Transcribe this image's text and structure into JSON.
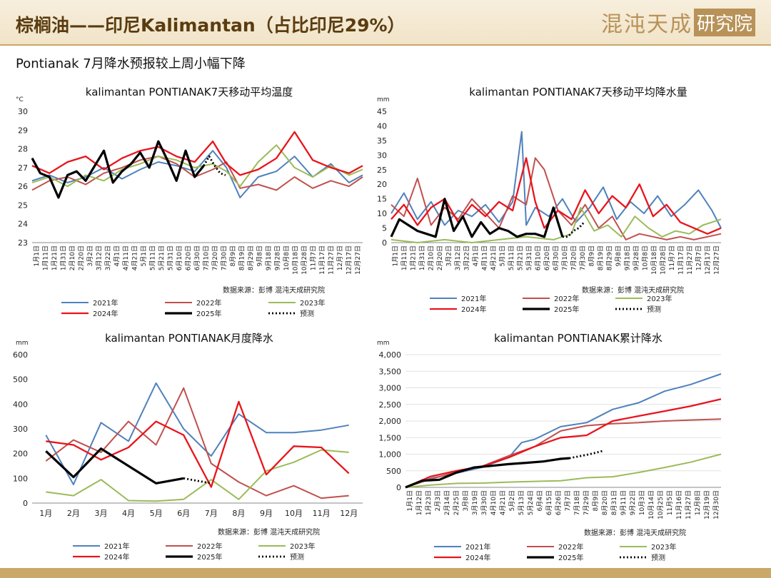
{
  "header": {
    "title": "棕榈油——印尼Kalimantan（占比印尼29%）",
    "logo_text": "混沌天成",
    "logo_box": "研究院"
  },
  "subtitle": "Pontianak 7月降水预报较上周小幅下降",
  "series_colors": {
    "2021年": "#4f81bd",
    "2022年": "#c0504d",
    "2023年": "#9bbb59",
    "2024年": "#e8141c",
    "2025年": "#000000",
    "预测": "#000000"
  },
  "chart_data": [
    {
      "id": "temp",
      "type": "line",
      "title": "kalimantan PONTIANAK7天移动平均温度",
      "unit": "°C",
      "ylim": [
        23,
        30
      ],
      "yticks": [
        23,
        24,
        25,
        26,
        27,
        28,
        29,
        30
      ],
      "ytick_labels": [
        "23",
        "24",
        "25",
        "26",
        "27",
        "28",
        "29",
        "30"
      ],
      "xticks": [
        "1月1日",
        "1月11日",
        "1月21日",
        "1月31日",
        "2月10日",
        "2月20日",
        "3月2日",
        "3月12日",
        "3月22日",
        "4月1日",
        "4月11日",
        "4月21日",
        "5月1日",
        "5月11日",
        "5月21日",
        "5月31日",
        "6月10日",
        "6月20日",
        "6月30日",
        "7月10日",
        "7月20日",
        "7月30日",
        "8月9日",
        "8月19日",
        "8月29日",
        "9月8日",
        "9月18日",
        "9月28日",
        "10月8日",
        "10月18日",
        "10月28日",
        "11月7日",
        "11月17日",
        "11月27日",
        "12月7日",
        "12月17日",
        "12月27日"
      ],
      "source": "数据来源：彭博  混沌天成研究院",
      "series": [
        {
          "name": "2021年",
          "x": [
            1,
            20,
            40,
            60,
            80,
            100,
            120,
            140,
            160,
            180,
            200,
            215,
            230,
            250,
            270,
            290,
            310,
            330,
            350,
            365
          ],
          "y": [
            26.3,
            26.6,
            26.2,
            26.5,
            27.0,
            26.4,
            26.9,
            27.3,
            27.1,
            26.8,
            27.9,
            27.0,
            25.4,
            26.5,
            26.8,
            27.6,
            26.5,
            27.2,
            26.2,
            26.6
          ]
        },
        {
          "name": "2022年",
          "x": [
            1,
            20,
            40,
            60,
            80,
            100,
            120,
            140,
            160,
            180,
            200,
            215,
            230,
            250,
            270,
            290,
            310,
            330,
            350,
            365
          ],
          "y": [
            25.8,
            26.3,
            26.5,
            26.1,
            26.7,
            27.0,
            27.4,
            27.6,
            27.2,
            26.5,
            26.9,
            27.3,
            25.9,
            26.1,
            25.8,
            26.5,
            25.9,
            26.3,
            26.0,
            26.5
          ]
        },
        {
          "name": "2023年",
          "x": [
            1,
            20,
            40,
            60,
            80,
            100,
            120,
            140,
            160,
            180,
            200,
            215,
            230,
            250,
            270,
            290,
            310,
            330,
            350,
            365
          ],
          "y": [
            26.2,
            26.5,
            26.0,
            26.6,
            26.3,
            26.9,
            27.2,
            27.6,
            27.4,
            27.0,
            27.2,
            26.8,
            26.0,
            27.3,
            28.2,
            27.0,
            26.5,
            27.1,
            26.6,
            26.9
          ]
        },
        {
          "name": "2024年",
          "x": [
            1,
            20,
            40,
            60,
            80,
            100,
            120,
            140,
            160,
            180,
            200,
            215,
            230,
            250,
            270,
            290,
            310,
            330,
            350,
            365
          ],
          "y": [
            27.1,
            26.7,
            27.3,
            27.6,
            26.9,
            27.5,
            27.9,
            28.1,
            27.6,
            27.3,
            28.4,
            27.2,
            26.6,
            26.9,
            27.5,
            28.9,
            27.4,
            27.0,
            26.7,
            27.1
          ]
        },
        {
          "name": "2025年",
          "x": [
            1,
            10,
            20,
            30,
            40,
            50,
            60,
            70,
            80,
            90,
            100,
            110,
            120,
            130,
            140,
            150,
            160,
            170,
            180,
            190
          ],
          "y": [
            27.5,
            26.7,
            26.5,
            25.4,
            26.6,
            26.8,
            26.3,
            27.1,
            27.9,
            26.2,
            26.8,
            27.2,
            27.8,
            27.0,
            28.4,
            27.4,
            26.3,
            27.9,
            26.5,
            27.1
          ]
        },
        {
          "name": "预测",
          "x": [
            190,
            196,
            202,
            208,
            214
          ],
          "y": [
            27.1,
            27.6,
            27.1,
            26.7,
            26.6
          ]
        }
      ]
    },
    {
      "id": "rain7",
      "type": "line",
      "title": "kalimantan PONTIANAK7天移动平均降水量",
      "unit": "mm",
      "ylim": [
        0,
        45
      ],
      "yticks": [
        0,
        5,
        10,
        15,
        20,
        25,
        30,
        35,
        40,
        45
      ],
      "ytick_labels": [
        "0",
        "5",
        "10",
        "15",
        "20",
        "25",
        "30",
        "35",
        "40",
        "45"
      ],
      "xticks": [
        "1月1日",
        "1月11日",
        "1月21日",
        "1月31日",
        "2月10日",
        "2月20日",
        "3月2日",
        "3月12日",
        "3月22日",
        "4月1日",
        "4月11日",
        "4月21日",
        "5月1日",
        "5月11日",
        "5月21日",
        "5月31日",
        "6月10日",
        "6月20日",
        "6月30日",
        "7月10日",
        "7月20日",
        "7月30日",
        "8月9日",
        "8月19日",
        "8月29日",
        "9月8日",
        "9月18日",
        "9月28日",
        "10月8日",
        "10月18日",
        "10月28日",
        "11月7日",
        "11月17日",
        "11月27日",
        "12月7日",
        "12月17日",
        "12月27日"
      ],
      "source": "数据来源：彭博  混沌天成研究院",
      "series": [
        {
          "name": "2021年",
          "x": [
            1,
            15,
            30,
            45,
            60,
            75,
            90,
            105,
            120,
            135,
            145,
            150,
            160,
            175,
            190,
            205,
            220,
            235,
            250,
            265,
            280,
            295,
            310,
            325,
            340,
            355,
            365
          ],
          "y": [
            10,
            17,
            8,
            14,
            6,
            11,
            9,
            13,
            7,
            14,
            38,
            6,
            12,
            9,
            15,
            7,
            12,
            19,
            8,
            14,
            10,
            16,
            9,
            13,
            18,
            11,
            5
          ]
        },
        {
          "name": "2022年",
          "x": [
            1,
            15,
            30,
            45,
            60,
            75,
            90,
            105,
            120,
            135,
            150,
            160,
            170,
            185,
            200,
            215,
            230,
            245,
            260,
            275,
            290,
            305,
            320,
            335,
            350,
            365
          ],
          "y": [
            13,
            9,
            22,
            6,
            12,
            8,
            15,
            10,
            5,
            16,
            13,
            29,
            25,
            11,
            6,
            13,
            5,
            9,
            1,
            3,
            2,
            1,
            2,
            1,
            2,
            3
          ]
        },
        {
          "name": "2023年",
          "x": [
            1,
            30,
            60,
            90,
            120,
            150,
            180,
            200,
            210,
            225,
            240,
            255,
            270,
            285,
            300,
            315,
            330,
            345,
            365
          ],
          "y": [
            1,
            0,
            1,
            0,
            1,
            2,
            1,
            3,
            12,
            4,
            6,
            2,
            9,
            5,
            2,
            4,
            3,
            6,
            8
          ]
        },
        {
          "name": "2024年",
          "x": [
            1,
            15,
            30,
            45,
            60,
            75,
            90,
            105,
            120,
            135,
            150,
            160,
            170,
            185,
            200,
            215,
            230,
            245,
            260,
            275,
            290,
            305,
            320,
            335,
            350,
            365
          ],
          "y": [
            8,
            13,
            6,
            12,
            15,
            7,
            13,
            9,
            14,
            11,
            29,
            14,
            5,
            11,
            8,
            18,
            10,
            16,
            12,
            20,
            9,
            13,
            7,
            5,
            3,
            5
          ]
        },
        {
          "name": "2025年",
          "x": [
            1,
            10,
            20,
            30,
            40,
            50,
            60,
            70,
            80,
            90,
            100,
            110,
            120,
            130,
            140,
            150,
            160,
            170,
            180,
            190
          ],
          "y": [
            2,
            8,
            6,
            4,
            3,
            2,
            15,
            4,
            9,
            2,
            7,
            3,
            5,
            4,
            2,
            3,
            3,
            2,
            12,
            2
          ]
        },
        {
          "name": "预测",
          "x": [
            190,
            196,
            202,
            208,
            214
          ],
          "y": [
            2,
            2,
            4,
            5,
            7
          ]
        }
      ]
    },
    {
      "id": "monthly",
      "type": "line",
      "title": "kalimantan PONTIANAK月度降水",
      "unit": "mm",
      "ylim": [
        0,
        600
      ],
      "yticks": [
        0,
        100,
        200,
        300,
        400,
        500,
        600
      ],
      "ytick_labels": [
        "0",
        "100",
        "200",
        "300",
        "400",
        "500",
        "600"
      ],
      "categories": [
        "1月",
        "2月",
        "3月",
        "4月",
        "5月",
        "6月",
        "7月",
        "8月",
        "9月",
        "10月",
        "11月",
        "12月"
      ],
      "source": "数据来源：彭博  混沌天成研究院",
      "series": [
        {
          "name": "2021年",
          "x": [
            1,
            2,
            3,
            4,
            5,
            6,
            7,
            8,
            9,
            10,
            11,
            12
          ],
          "y": [
            275,
            75,
            325,
            250,
            485,
            300,
            190,
            360,
            285,
            285,
            295,
            315
          ]
        },
        {
          "name": "2022年",
          "x": [
            1,
            2,
            3,
            4,
            5,
            6,
            7,
            8,
            9,
            10,
            11,
            12
          ],
          "y": [
            170,
            255,
            205,
            330,
            235,
            465,
            160,
            85,
            30,
            70,
            20,
            30
          ]
        },
        {
          "name": "2023年",
          "x": [
            1,
            2,
            3,
            4,
            5,
            6,
            7,
            8,
            9,
            10,
            11,
            12
          ],
          "y": [
            45,
            30,
            95,
            10,
            8,
            15,
            95,
            15,
            130,
            165,
            215,
            205
          ]
        },
        {
          "name": "2024年",
          "x": [
            1,
            2,
            3,
            4,
            5,
            6,
            7,
            8,
            9,
            10,
            11,
            12
          ],
          "y": [
            250,
            235,
            175,
            225,
            330,
            275,
            65,
            410,
            115,
            230,
            225,
            120
          ]
        },
        {
          "name": "2025年",
          "x": [
            1,
            2,
            3,
            4,
            5,
            6
          ],
          "y": [
            210,
            105,
            220,
            150,
            80,
            100
          ]
        },
        {
          "name": "预测",
          "x": [
            6,
            7
          ],
          "y": [
            100,
            80
          ]
        }
      ]
    },
    {
      "id": "cumulative",
      "type": "line",
      "title": "kalimantan PONTIANAK累计降水",
      "unit": "mm",
      "ylim": [
        0,
        4000
      ],
      "yticks": [
        0,
        500,
        1000,
        1500,
        2000,
        2500,
        3000,
        3500,
        4000
      ],
      "ytick_labels": [
        "0",
        "500",
        "1,000",
        "1,500",
        "2,000",
        "2,500",
        "3,000",
        "3,500",
        "4,000"
      ],
      "xticks": [
        "1月1日",
        "1月12日",
        "1月23日",
        "2月3日",
        "2月14日",
        "2月25日",
        "3月8日",
        "3月19日",
        "3月30日",
        "4月10日",
        "4月21日",
        "5月2日",
        "5月13日",
        "5月24日",
        "6月4日",
        "6月15日",
        "6月26日",
        "7月7日",
        "7月18日",
        "7月29日",
        "8月9日",
        "8月20日",
        "8月31日",
        "9月11日",
        "9月22日",
        "10月3日",
        "10月14日",
        "10月25日",
        "11月5日",
        "11月16日",
        "11月27日",
        "12月8日",
        "12月19日",
        "12月30日"
      ],
      "source": "数据来源：彭博  混沌天成研究院",
      "series": [
        {
          "name": "2021年",
          "x": [
            1,
            30,
            60,
            90,
            120,
            135,
            150,
            180,
            210,
            240,
            270,
            300,
            330,
            365
          ],
          "y": [
            0,
            270,
            430,
            610,
            900,
            1350,
            1450,
            1830,
            1950,
            2350,
            2550,
            2900,
            3100,
            3420
          ]
        },
        {
          "name": "2022年",
          "x": [
            1,
            30,
            60,
            90,
            120,
            150,
            180,
            210,
            240,
            270,
            300,
            330,
            365
          ],
          "y": [
            0,
            250,
            460,
            640,
            950,
            1230,
            1700,
            1860,
            1920,
            1950,
            2000,
            2030,
            2060
          ]
        },
        {
          "name": "2023年",
          "x": [
            1,
            30,
            60,
            90,
            120,
            150,
            180,
            210,
            240,
            270,
            300,
            330,
            365
          ],
          "y": [
            0,
            70,
            120,
            130,
            160,
            180,
            200,
            290,
            320,
            450,
            600,
            760,
            1000
          ]
        },
        {
          "name": "2024年",
          "x": [
            1,
            30,
            60,
            90,
            120,
            150,
            180,
            210,
            240,
            270,
            300,
            330,
            365
          ],
          "y": [
            0,
            330,
            500,
            640,
            900,
            1230,
            1500,
            1570,
            2000,
            2150,
            2300,
            2450,
            2660
          ]
        },
        {
          "name": "2025年",
          "x": [
            1,
            20,
            40,
            60,
            80,
            100,
            120,
            140,
            160,
            180,
            190
          ],
          "y": [
            0,
            200,
            230,
            450,
            600,
            650,
            700,
            740,
            780,
            860,
            880
          ]
        },
        {
          "name": "预测",
          "x": [
            190,
            200,
            210,
            220,
            230
          ],
          "y": [
            880,
            930,
            980,
            1040,
            1110
          ]
        }
      ]
    }
  ]
}
